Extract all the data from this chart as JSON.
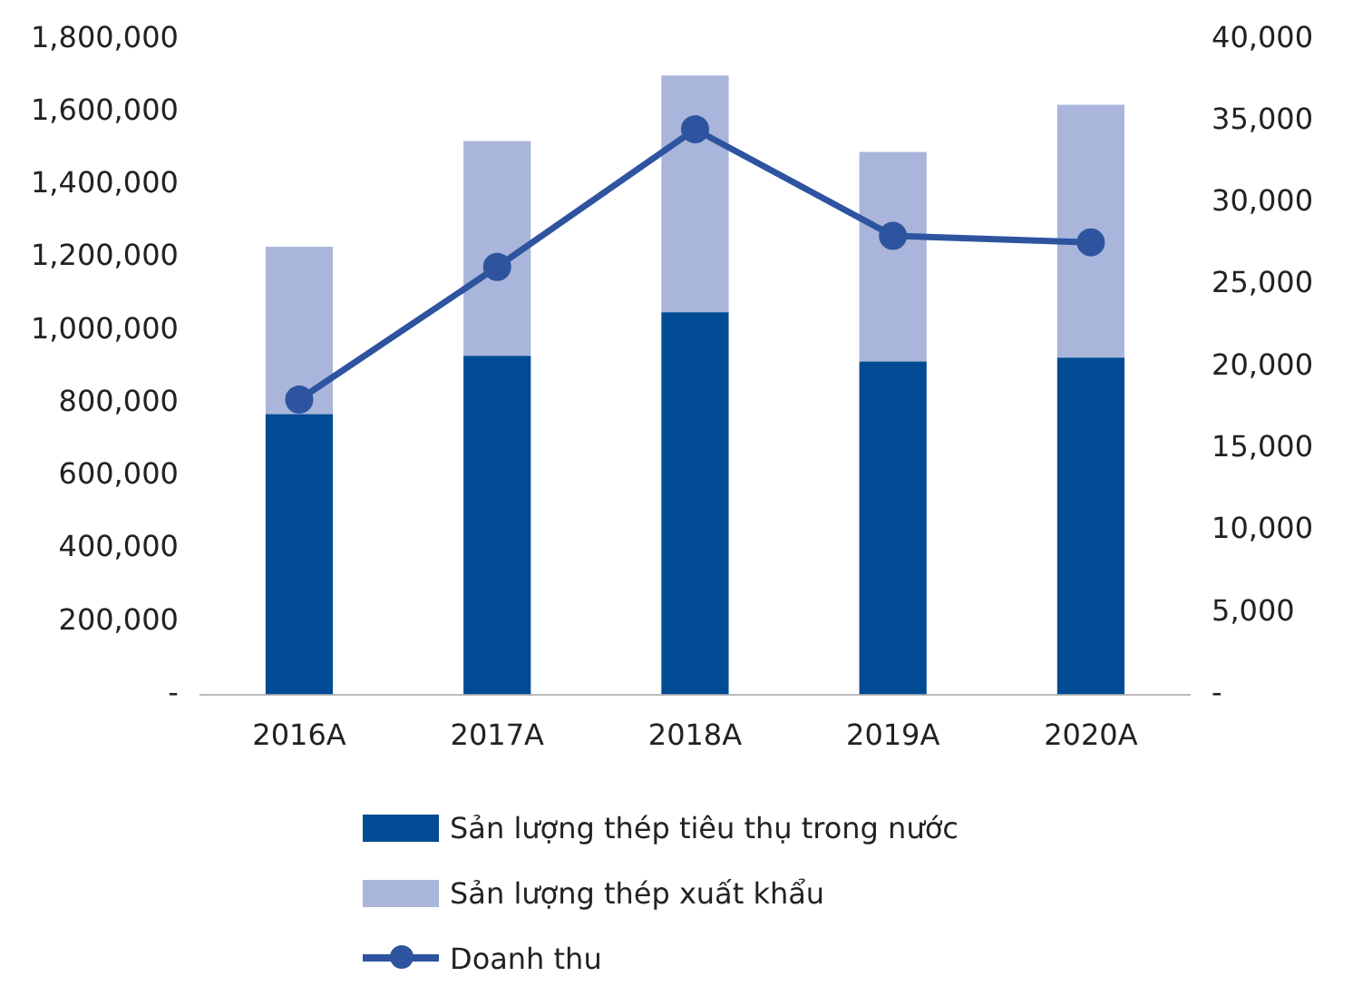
{
  "chart_data": {
    "type": "bar",
    "stacked": true,
    "categories": [
      "2016A",
      "2017A",
      "2018A",
      "2019A",
      "2020A"
    ],
    "series": [
      {
        "name": "Sản lượng thép tiêu thụ trong nước",
        "color": "#004b93",
        "values": [
          770000,
          930000,
          1050000,
          915000,
          925000
        ]
      },
      {
        "name": "Sản lượng thép xuất khẩu",
        "color": "#a9b5da",
        "values": [
          460000,
          590000,
          650000,
          575000,
          695000
        ]
      },
      {
        "name": "Doanh thu",
        "type": "line",
        "axis": "y2",
        "color": "#2e54a0",
        "values": [
          18000,
          26100,
          34500,
          28000,
          27600
        ]
      }
    ],
    "ylim": [
      0,
      1800000
    ],
    "yticks": [
      {
        "value": 0,
        "label": "-"
      },
      {
        "value": 200000,
        "label": "200,000"
      },
      {
        "value": 400000,
        "label": "400,000"
      },
      {
        "value": 600000,
        "label": "600,000"
      },
      {
        "value": 800000,
        "label": "800,000"
      },
      {
        "value": 1000000,
        "label": "1,000,000"
      },
      {
        "value": 1200000,
        "label": "1,200,000"
      },
      {
        "value": 1400000,
        "label": "1,400,000"
      },
      {
        "value": 1600000,
        "label": "1,600,000"
      },
      {
        "value": 1800000,
        "label": "1,800,000"
      }
    ],
    "y2lim": [
      0,
      40000
    ],
    "y2ticks": [
      {
        "value": 0,
        "label": "-"
      },
      {
        "value": 5000,
        "label": "5,000"
      },
      {
        "value": 10000,
        "label": "10,000"
      },
      {
        "value": 15000,
        "label": "15,000"
      },
      {
        "value": 20000,
        "label": "20,000"
      },
      {
        "value": 25000,
        "label": "25,000"
      },
      {
        "value": 30000,
        "label": "30,000"
      },
      {
        "value": 35000,
        "label": "35,000"
      },
      {
        "value": 40000,
        "label": "40,000"
      }
    ],
    "grid": false,
    "legend": "bottom",
    "marker": "circle"
  }
}
